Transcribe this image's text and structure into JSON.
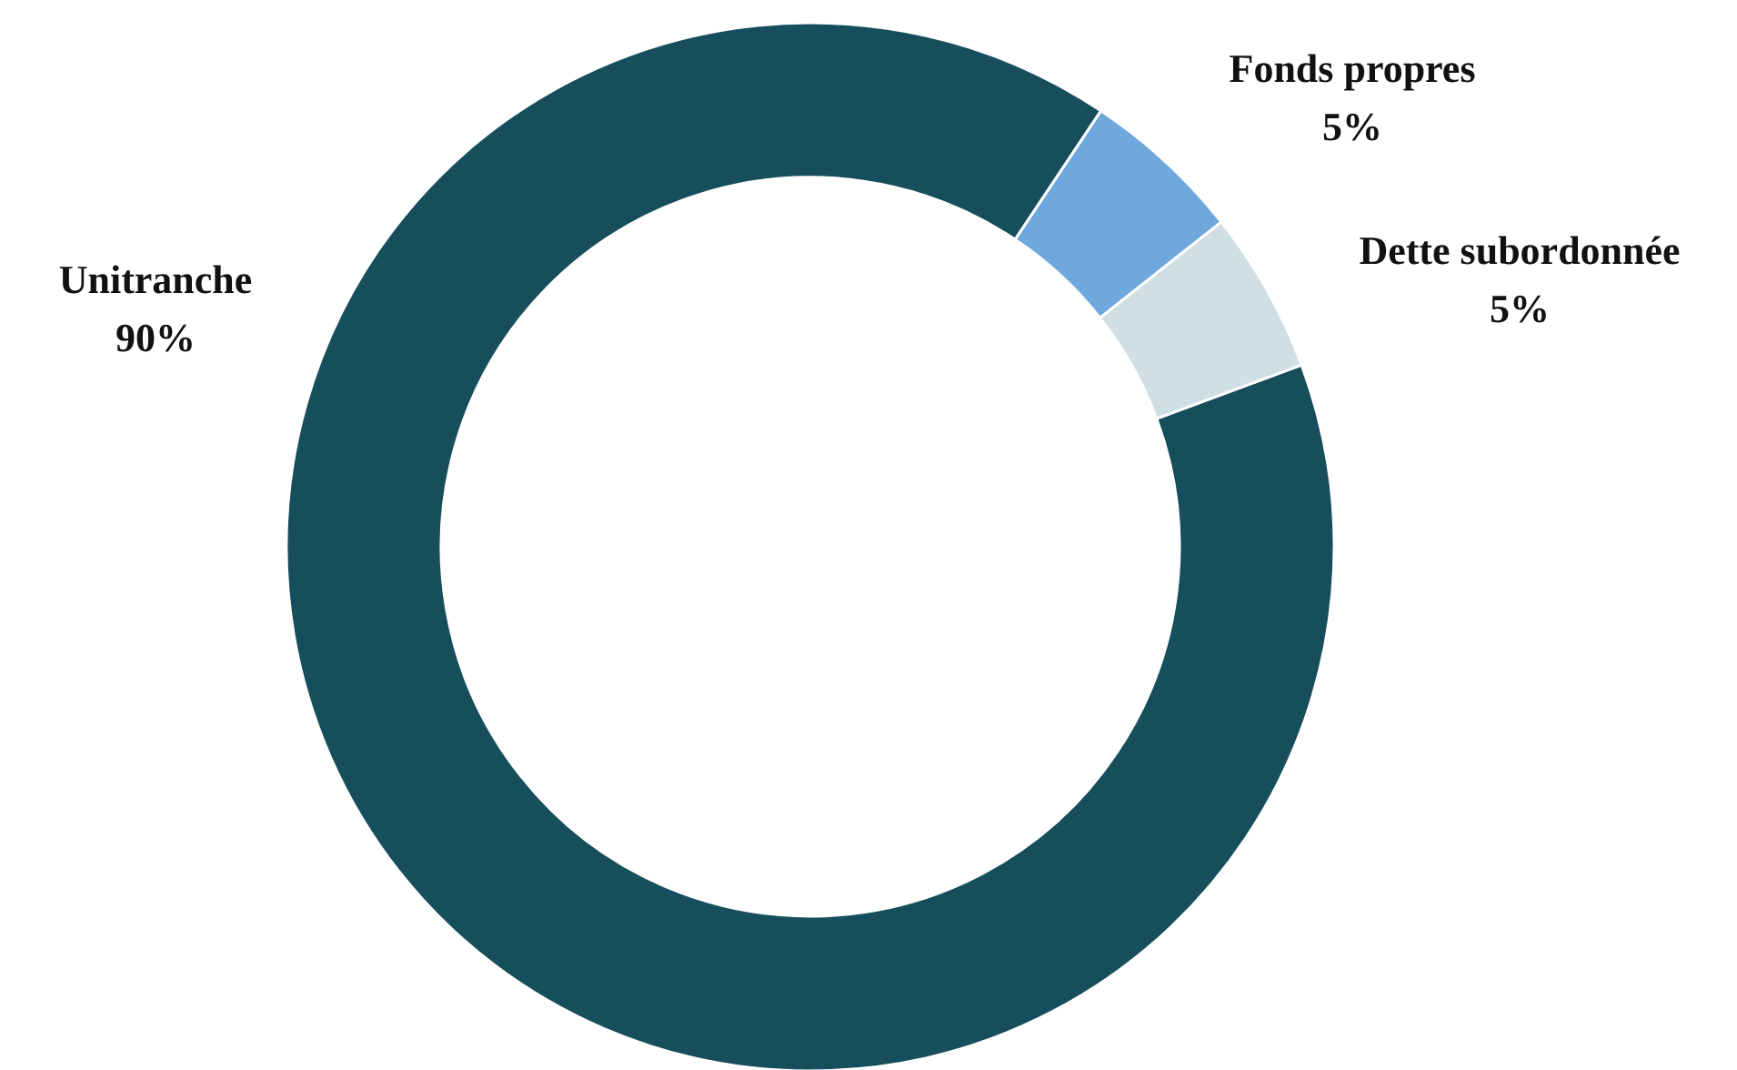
{
  "chart_data": {
    "type": "donut",
    "categories": [
      "Unitranche",
      "Fonds propres",
      "Dette subordonnée"
    ],
    "values": [
      90,
      5,
      5
    ],
    "colors": [
      "#164e5c",
      "#6fa8dc",
      "#cfdfe3"
    ],
    "value_labels": [
      "90%",
      "5%",
      "5%"
    ]
  }
}
